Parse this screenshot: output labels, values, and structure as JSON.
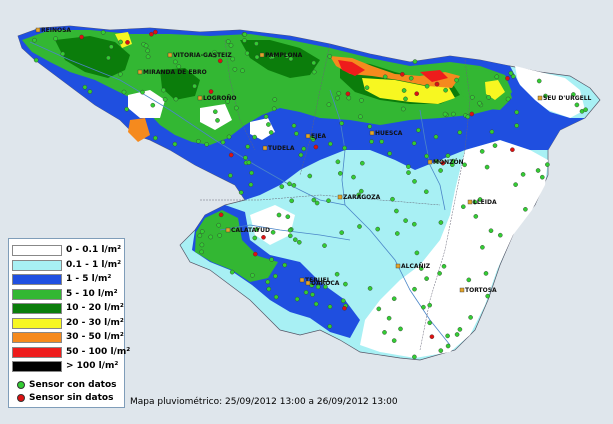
{
  "legend": {
    "items": [
      {
        "label": "0 - 0.1 l/m²",
        "color": "#ffffff"
      },
      {
        "label": "0.1 - 1 l/m²",
        "color": "#a8f0f4"
      },
      {
        "label": "1 - 5 l/m²",
        "color": "#1f4fe0"
      },
      {
        "label": "5 - 10 l/m²",
        "color": "#33b733"
      },
      {
        "label": "10 - 20 l/m²",
        "color": "#0b7d0b"
      },
      {
        "label": "20 - 30 l/m²",
        "color": "#f7f721"
      },
      {
        "label": "30 - 50 l/m²",
        "color": "#f58a1e"
      },
      {
        "label": "50 - 100 l/m²",
        "color": "#ee1c1c"
      },
      {
        "label": "> 100 l/m²",
        "color": "#000000"
      }
    ],
    "sensors": [
      {
        "label": "Sensor con datos",
        "color": "#33cc33"
      },
      {
        "label": "Sensor sin datos",
        "color": "#dd1111"
      }
    ]
  },
  "caption": "Mapa pluviométrico:  25/09/2012 13:00  a  26/09/2012 13:00",
  "cities": [
    "REINOSA",
    "VITORIA-GASTEIZ",
    "PAMPLONA",
    "MIRANDA DE EBRO",
    "LOGROÑO",
    "SEU D'URGELL",
    "EJEA",
    "HUESCA",
    "TUDELA",
    "MONZÓN",
    "ZARAGOZA",
    "LLEIDA",
    "CALATAYUD",
    "ALCAÑIZ",
    "TERUEL",
    "DAROCA",
    "TORTOSA"
  ]
}
